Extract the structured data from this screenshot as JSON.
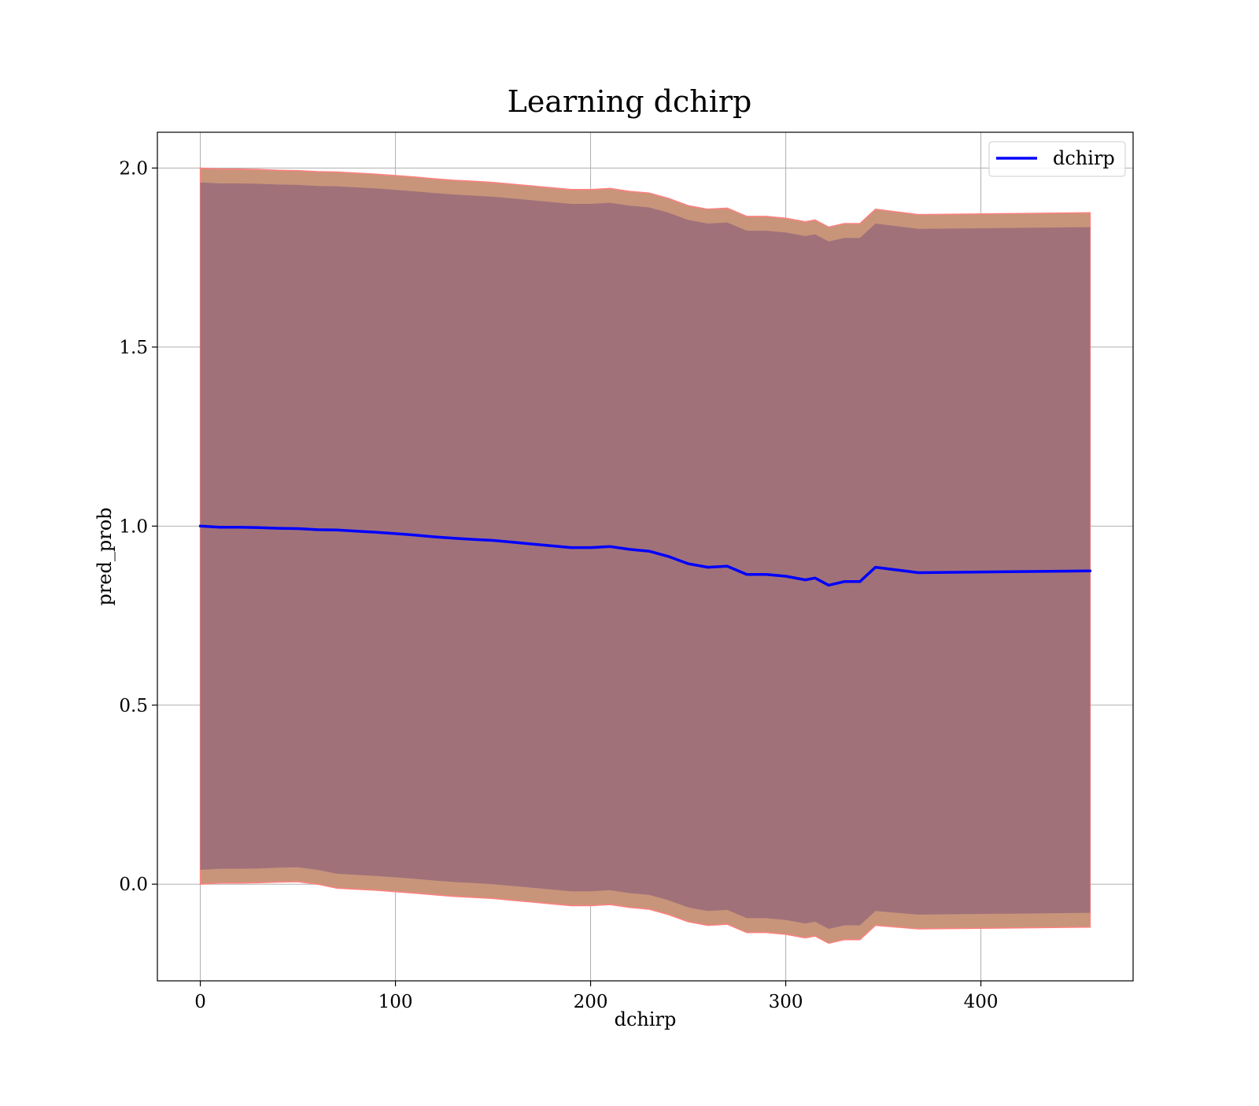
{
  "chart_data": {
    "type": "line",
    "title": "Learning dchirp",
    "xlabel": "dchirp",
    "ylabel": "pred_prob",
    "xlim": [
      -22,
      478
    ],
    "ylim": [
      -0.27,
      2.1
    ],
    "xticks": [
      0,
      100,
      200,
      300,
      400
    ],
    "xtick_labels": [
      "0",
      "100",
      "200",
      "300",
      "400"
    ],
    "yticks": [
      0.0,
      0.5,
      1.0,
      1.5,
      2.0
    ],
    "ytick_labels": [
      "0.0",
      "0.5",
      "1.0",
      "1.5",
      "2.0"
    ],
    "grid": true,
    "legend": {
      "placement": "top-right",
      "entries": [
        "dchirp"
      ]
    },
    "colors": {
      "line": "#0000ff",
      "outer_band": "#c8957a",
      "inner_band": "#a1717a",
      "outer_band_edge": "#ff8080",
      "grid": "#b0b0b0"
    },
    "series": [
      {
        "name": "dchirp",
        "x": [
          0,
          10,
          20,
          30,
          40,
          50,
          60,
          70,
          80,
          90,
          100,
          110,
          120,
          130,
          140,
          150,
          160,
          170,
          180,
          190,
          200,
          210,
          220,
          230,
          240,
          250,
          260,
          270,
          280,
          290,
          300,
          310,
          315,
          322,
          330,
          338,
          346,
          368,
          456
        ],
        "y": [
          1.0,
          0.997,
          0.997,
          0.996,
          0.994,
          0.993,
          0.99,
          0.989,
          0.986,
          0.983,
          0.979,
          0.975,
          0.97,
          0.966,
          0.963,
          0.96,
          0.955,
          0.95,
          0.945,
          0.94,
          0.94,
          0.943,
          0.935,
          0.93,
          0.915,
          0.895,
          0.885,
          0.888,
          0.865,
          0.865,
          0.86,
          0.85,
          0.855,
          0.835,
          0.845,
          0.845,
          0.885,
          0.87,
          0.875
        ]
      }
    ],
    "bands": [
      {
        "role": "outer",
        "lower": [
          0.0,
          0.003,
          0.003,
          0.004,
          0.006,
          0.007,
          0.0,
          -0.011,
          -0.014,
          -0.017,
          -0.021,
          -0.025,
          -0.03,
          -0.034,
          -0.037,
          -0.04,
          -0.045,
          -0.05,
          -0.055,
          -0.06,
          -0.06,
          -0.057,
          -0.065,
          -0.07,
          -0.085,
          -0.105,
          -0.115,
          -0.112,
          -0.135,
          -0.135,
          -0.14,
          -0.15,
          -0.145,
          -0.165,
          -0.155,
          -0.155,
          -0.115,
          -0.125,
          -0.12
        ],
        "upper": [
          2.0,
          1.997,
          1.997,
          1.996,
          1.994,
          1.993,
          1.99,
          1.989,
          1.986,
          1.983,
          1.979,
          1.975,
          1.97,
          1.966,
          1.963,
          1.96,
          1.955,
          1.95,
          1.945,
          1.94,
          1.94,
          1.943,
          1.935,
          1.93,
          1.915,
          1.895,
          1.885,
          1.888,
          1.865,
          1.865,
          1.86,
          1.85,
          1.855,
          1.835,
          1.845,
          1.845,
          1.885,
          1.87,
          1.875
        ]
      },
      {
        "role": "inner",
        "lower": [
          0.04,
          0.043,
          0.043,
          0.044,
          0.046,
          0.047,
          0.04,
          0.029,
          0.026,
          0.023,
          0.019,
          0.015,
          0.01,
          0.006,
          0.003,
          0.0,
          -0.005,
          -0.01,
          -0.015,
          -0.02,
          -0.02,
          -0.017,
          -0.025,
          -0.03,
          -0.045,
          -0.065,
          -0.075,
          -0.072,
          -0.095,
          -0.095,
          -0.1,
          -0.11,
          -0.105,
          -0.125,
          -0.115,
          -0.115,
          -0.075,
          -0.085,
          -0.08
        ],
        "upper": [
          1.96,
          1.957,
          1.957,
          1.956,
          1.954,
          1.953,
          1.95,
          1.949,
          1.946,
          1.943,
          1.939,
          1.935,
          1.93,
          1.926,
          1.923,
          1.92,
          1.915,
          1.91,
          1.905,
          1.9,
          1.9,
          1.903,
          1.895,
          1.89,
          1.875,
          1.855,
          1.845,
          1.848,
          1.825,
          1.825,
          1.82,
          1.81,
          1.815,
          1.795,
          1.805,
          1.805,
          1.845,
          1.83,
          1.835
        ]
      }
    ]
  }
}
